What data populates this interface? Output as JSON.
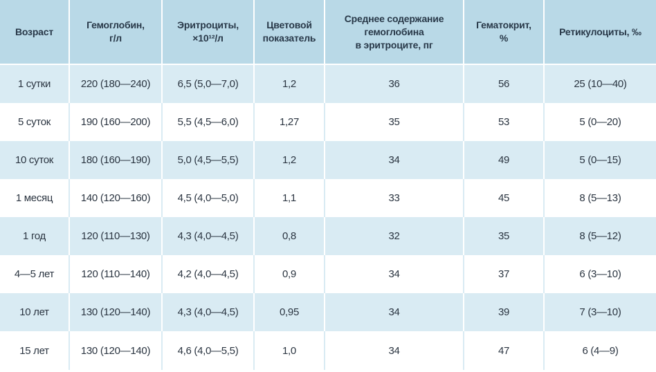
{
  "table": {
    "headers": [
      {
        "lines": [
          "Возраст"
        ]
      },
      {
        "lines": [
          "Гемоглобин,",
          "г/л"
        ]
      },
      {
        "lines": [
          "Эритроциты,",
          "×10¹²/л"
        ]
      },
      {
        "lines": [
          "Цветовой",
          "показатель"
        ]
      },
      {
        "lines": [
          "Среднее содержание",
          "гемоглобина",
          "в эритроците, пг"
        ]
      },
      {
        "lines": [
          "Гематокрит,",
          "%"
        ]
      },
      {
        "lines": [
          "Ретикулоциты, ‰"
        ]
      }
    ],
    "rows": [
      [
        "1 сутки",
        "220 (180—240)",
        "6,5 (5,0—7,0)",
        "1,2",
        "36",
        "56",
        "25 (10—40)"
      ],
      [
        "5 суток",
        "190 (160—200)",
        "5,5 (4,5—6,0)",
        "1,27",
        "35",
        "53",
        "5 (0—20)"
      ],
      [
        "10 суток",
        "180 (160—190)",
        "5,0 (4,5—5,5)",
        "1,2",
        "34",
        "49",
        "5 (0—15)"
      ],
      [
        "1 месяц",
        "140 (120—160)",
        "4,5 (4,0—5,0)",
        "1,1",
        "33",
        "45",
        "8 (5—13)"
      ],
      [
        "1 год",
        "120 (110—130)",
        "4,3 (4,0—4,5)",
        "0,8",
        "32",
        "35",
        "8 (5—12)"
      ],
      [
        "4—5 лет",
        "120 (110—140)",
        "4,2 (4,0—4,5)",
        "0,9",
        "34",
        "37",
        "6 (3—10)"
      ],
      [
        "10 лет",
        "130 (120—140)",
        "4,3 (4,0—4,5)",
        "0,95",
        "34",
        "39",
        "7 (3—10)"
      ],
      [
        "15 лет",
        "130 (120—140)",
        "4,6 (4,0—5,5)",
        "1,0",
        "34",
        "47",
        "6 (4—9)"
      ]
    ]
  }
}
